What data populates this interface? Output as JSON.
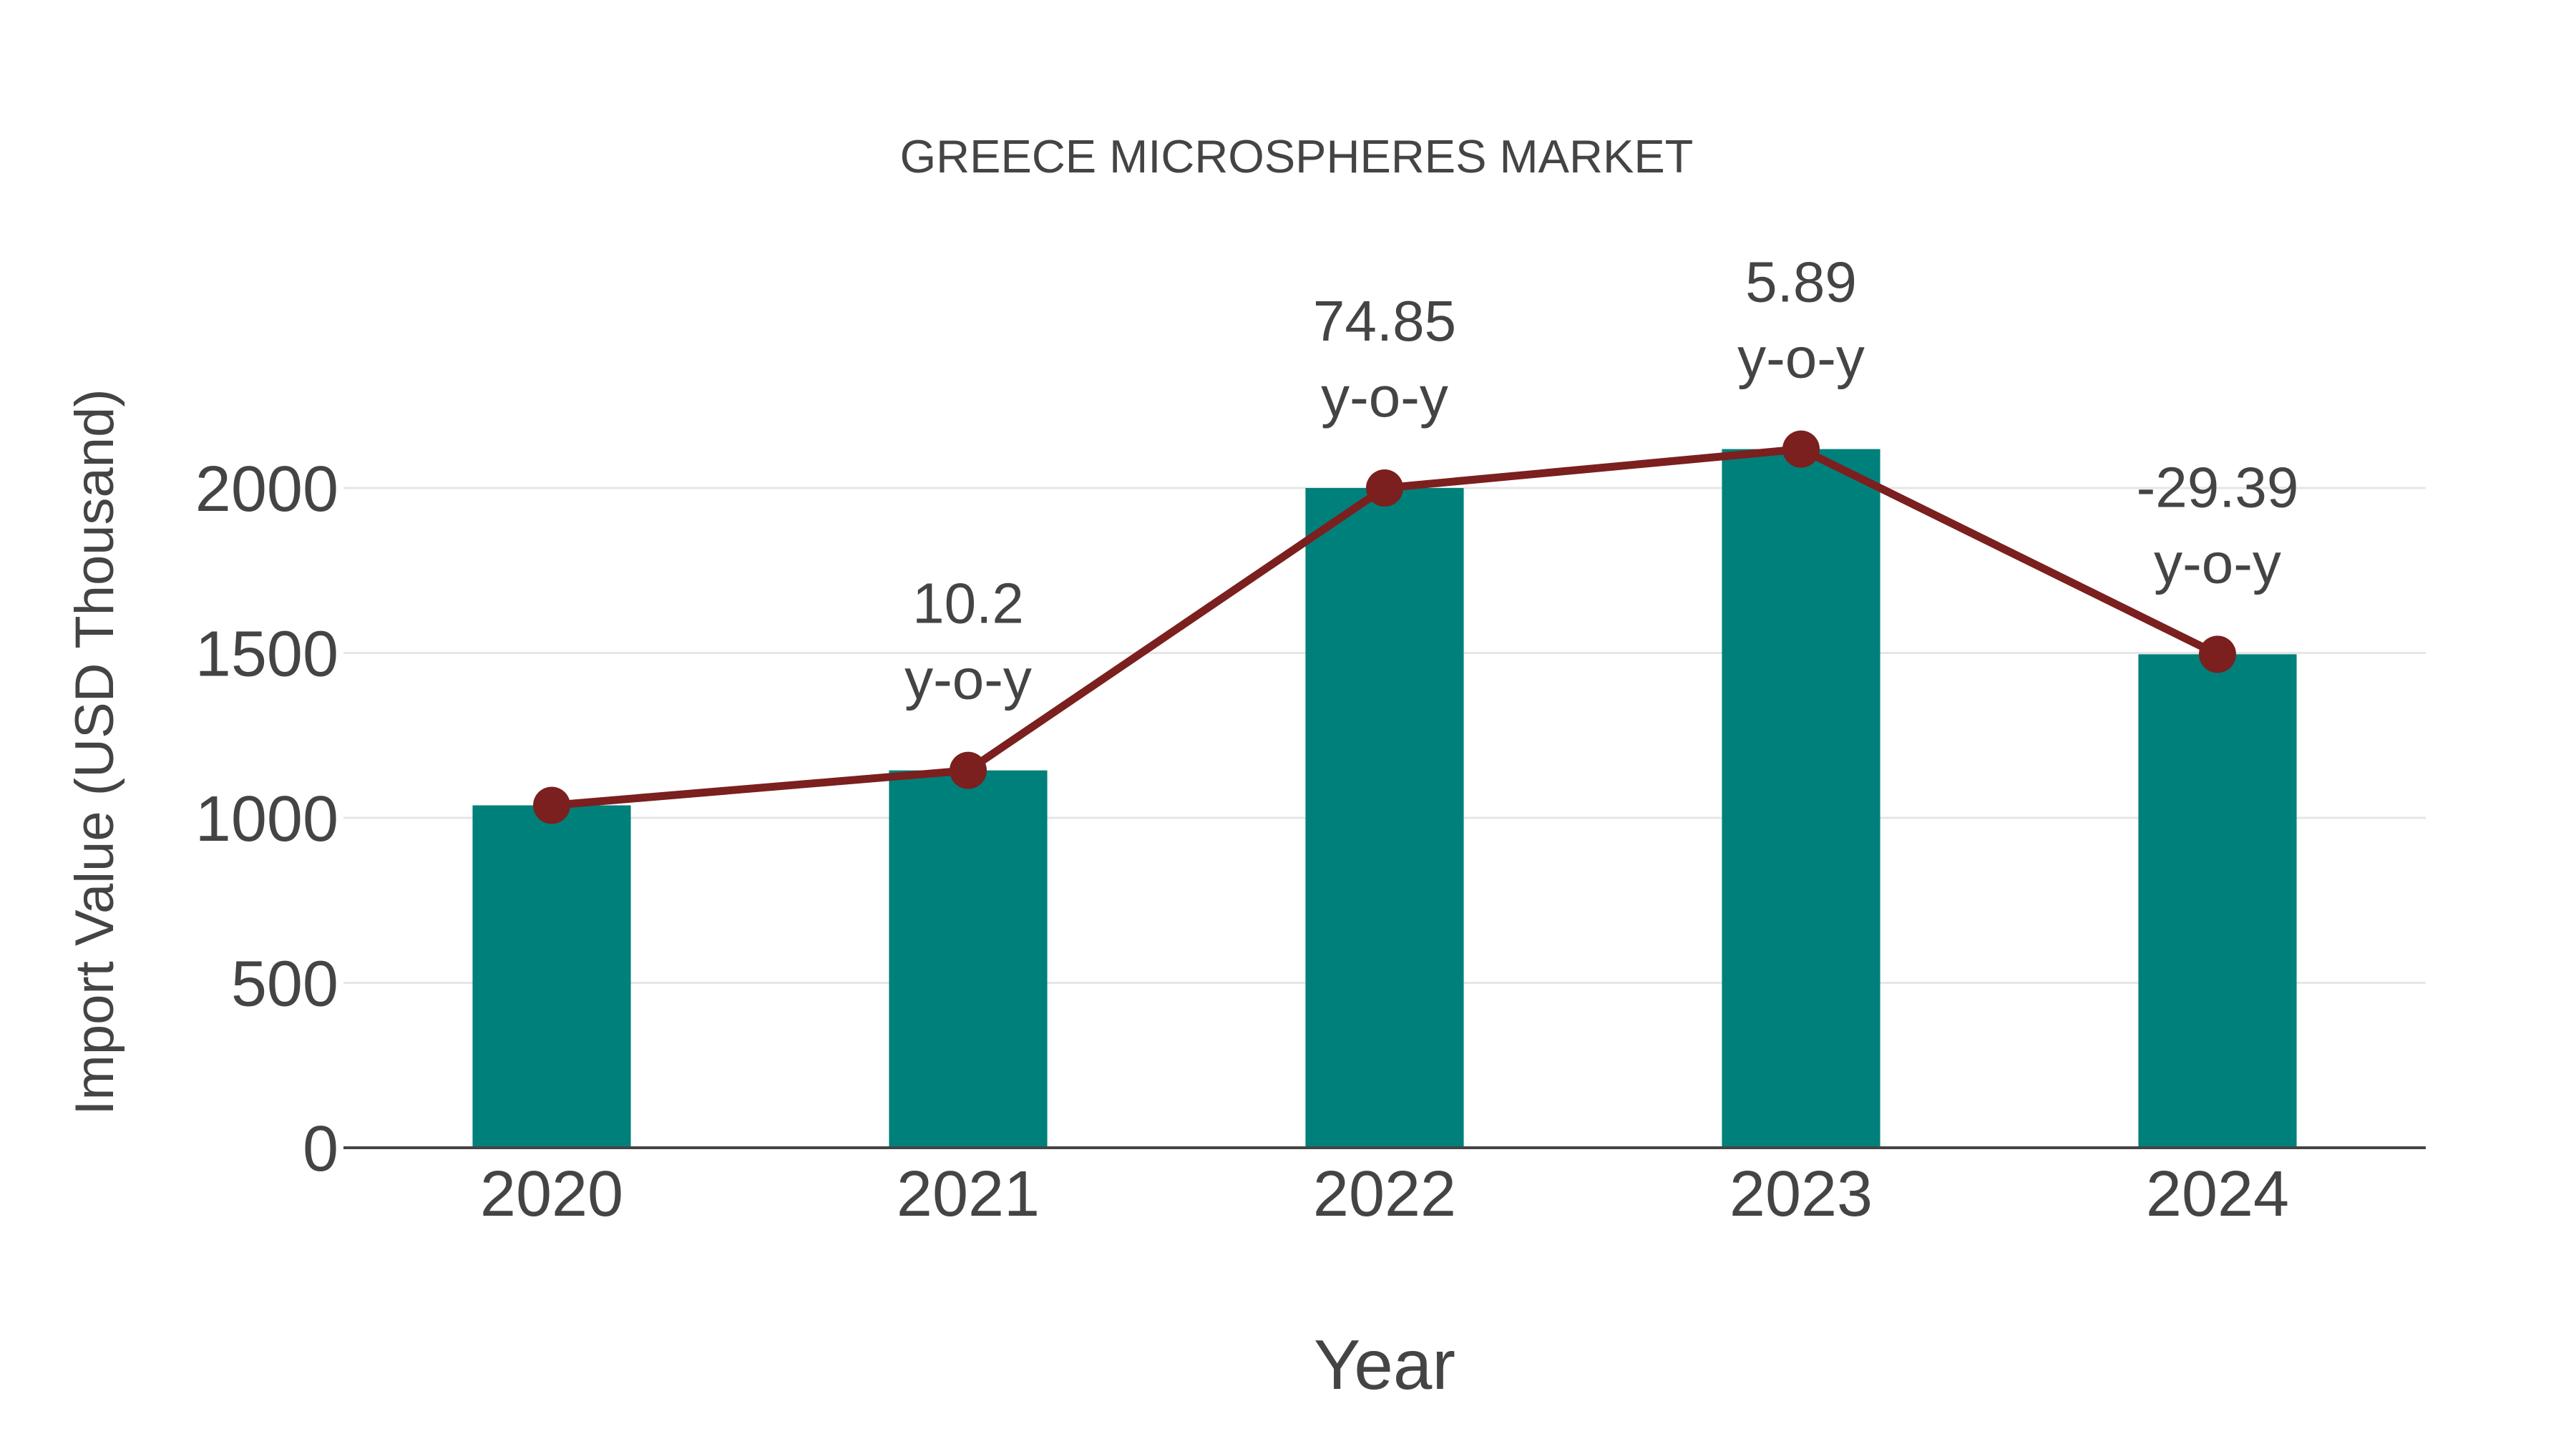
{
  "colors": {
    "bar": "#00807a",
    "line": "#7b1f1f",
    "marker": "#7b1f1f",
    "text": "#444444",
    "grid": "#e6e6e6",
    "axis": "#444444",
    "background": "#ffffff"
  },
  "chart_data": {
    "type": "bar",
    "title": "GREECE MICROSPHERES MARKET",
    "xlabel": "Year",
    "ylabel": "Import Value (USD Thousand)",
    "categories": [
      "2020",
      "2021",
      "2022",
      "2023",
      "2024"
    ],
    "series": [
      {
        "name": "Import Value",
        "type": "bar",
        "values": [
          1038,
          1144,
          2000,
          2118,
          1496
        ]
      },
      {
        "name": "Import Value (trend line)",
        "type": "line",
        "values": [
          1038,
          1144,
          2000,
          2118,
          1496
        ]
      }
    ],
    "annotations": [
      {
        "category": "2021",
        "value": "10.2",
        "suffix": "y-o-y"
      },
      {
        "category": "2022",
        "value": "74.85",
        "suffix": "y-o-y"
      },
      {
        "category": "2023",
        "value": "5.89",
        "suffix": "y-o-y"
      },
      {
        "category": "2024",
        "value": "-29.39",
        "suffix": "y-o-y"
      }
    ],
    "yticks": [
      0,
      500,
      1000,
      1500,
      2000
    ],
    "ylim": [
      0,
      2290
    ],
    "grid": true,
    "legend": "none"
  }
}
